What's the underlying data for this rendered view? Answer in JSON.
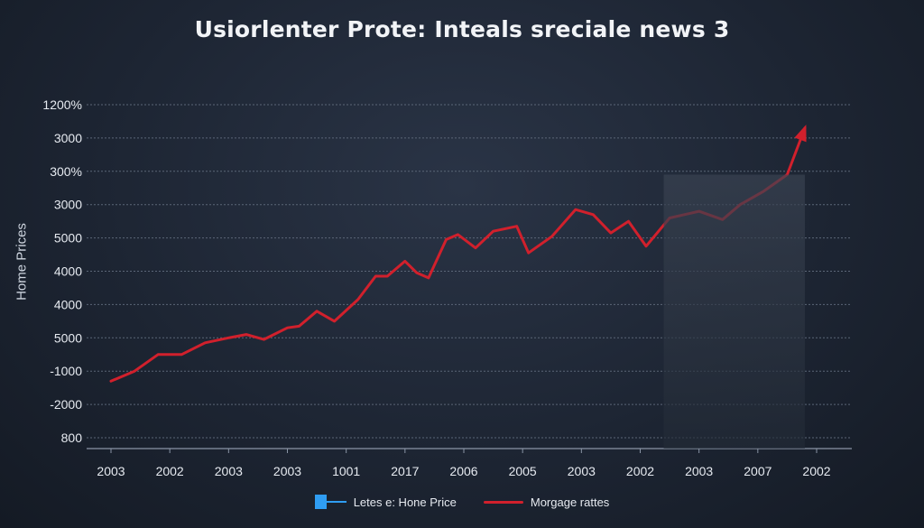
{
  "chart_data": {
    "type": "line",
    "title": "Usiorlenter Prote: Inteals sreciale news 3",
    "ylabel": "Home Prices",
    "xlabel": "",
    "y_tick_labels": [
      "1200%",
      "3000",
      "300%",
      "3000",
      "5000",
      "4000",
      "4000",
      "5000",
      "-1000",
      "-2000",
      "800"
    ],
    "x_tick_labels": [
      "2003",
      "2002",
      "2003",
      "2003",
      "1001",
      "2017",
      "2006",
      "2005",
      "2003",
      "2002",
      "2003",
      "2007",
      "2002"
    ],
    "ylim": [
      0,
      10
    ],
    "xlim": [
      0,
      12
    ],
    "grid": true,
    "legend_position": "bottom-center",
    "series": [
      {
        "name": "Morgage rattes",
        "color": "#d1202c",
        "x": [
          0,
          0.4,
          0.8,
          1.2,
          1.6,
          2.0,
          2.3,
          2.6,
          3.0,
          3.2,
          3.5,
          3.8,
          4.2,
          4.5,
          4.7,
          5.0,
          5.2,
          5.4,
          5.7,
          5.9,
          6.2,
          6.5,
          6.9,
          7.1,
          7.5,
          7.9,
          8.2,
          8.5,
          8.8,
          9.1,
          9.5,
          10.0,
          10.4,
          10.7,
          11.1,
          11.5,
          11.8
        ],
        "y": [
          1.7,
          2.0,
          2.5,
          2.5,
          2.85,
          3.0,
          3.1,
          2.95,
          3.3,
          3.35,
          3.8,
          3.5,
          4.15,
          4.85,
          4.85,
          5.3,
          4.95,
          4.8,
          5.95,
          6.1,
          5.7,
          6.2,
          6.35,
          5.55,
          6.05,
          6.85,
          6.7,
          6.15,
          6.5,
          5.75,
          6.6,
          6.8,
          6.55,
          7.0,
          7.4,
          7.9,
          9.3
        ]
      }
    ],
    "highlight_region": {
      "x_start": 9.4,
      "x_end": 11.8
    },
    "legend": [
      {
        "label": "Letes e: Hone Price",
        "color": "#2f9df2"
      },
      {
        "label": "Morgage rattes",
        "color": "#d1202c"
      }
    ]
  }
}
